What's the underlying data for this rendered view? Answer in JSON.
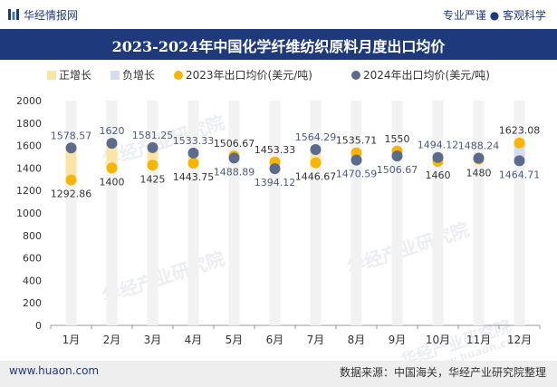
{
  "header": {
    "brand": "华经情报网",
    "tagline": "专业严谨 ● 客观科学"
  },
  "watermark": "华经产业研究院",
  "watermark_url": "www.huaon.com",
  "chart_data": {
    "type": "bar",
    "title": "2023-2024年中国化学纤维纺织原料月度出口均价",
    "categories": [
      "1月",
      "2月",
      "3月",
      "4月",
      "5月",
      "6月",
      "7月",
      "8月",
      "9月",
      "10月",
      "11月",
      "12月"
    ],
    "ylim": [
      0,
      2000
    ],
    "yticks": [
      0,
      200,
      400,
      600,
      800,
      1000,
      1200,
      1400,
      1600,
      1800,
      2000
    ],
    "series": [
      {
        "name": "2023年出口均价(美元/吨)",
        "values": [
          1292.86,
          1400,
          1425,
          1443.75,
          1506.67,
          1453.33,
          1446.67,
          1535.71,
          1550,
          1460,
          1480,
          1623.08
        ]
      },
      {
        "name": "2024年出口均价(美元/吨)",
        "values": [
          1578.57,
          1620,
          1581.25,
          1533.33,
          1488.89,
          1394.12,
          1564.29,
          1470.59,
          1506.67,
          1494.12,
          1488.24,
          1464.71
        ]
      }
    ],
    "legend": [
      "正增长",
      "负增长",
      "2023年出口均价(美元/吨)",
      "2024年出口均价(美元/吨)"
    ],
    "colors": {
      "positive": "#fbe5a6",
      "negative": "#d6dbef",
      "s2023": "#f7b500",
      "s2024": "#5b6b8c",
      "track": "#f2f2f2",
      "axis": "#999999"
    }
  },
  "footer": {
    "site": "www.huaon.com",
    "source": "数据来源：中国海关，华经产业研究院整理"
  }
}
